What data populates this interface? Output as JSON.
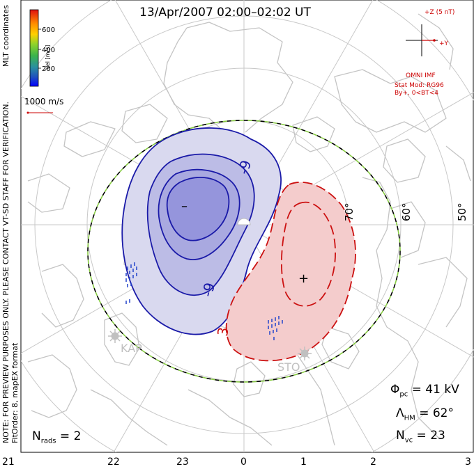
{
  "title": "13/Apr/2007 02:00–02:02 UT",
  "coord_label": "MLT coordinates",
  "color_bar": {
    "label": "Vel [m/s]",
    "ticks": [
      "600",
      "400",
      "200"
    ],
    "colors": [
      "#0000ff",
      "#1f6fb0",
      "#2aa198",
      "#3cb44b",
      "#7ed321",
      "#d4e157",
      "#ffd000",
      "#ff8c00",
      "#ff3300",
      "#cc0000"
    ]
  },
  "scale_vector": {
    "label": "1000 m/s"
  },
  "imf_panel": {
    "z_label": "+Z (5 nT)",
    "y_label": "+Y",
    "source": "OMNI IMF",
    "stat_model": "Stat Mod: RG96",
    "condition": "By+, 0<BT<4"
  },
  "notes": {
    "preview": "NOTE: FOR PREVIEW PURPOSES ONLY. PLEASE CONTACT VT-SD STAFF FOR VERIFICATION.",
    "fit": "FitOrder: 8, mapEX format"
  },
  "latitude_labels": [
    "70°",
    "60°",
    "50°"
  ],
  "mlt_ticks": [
    "21",
    "22",
    "23",
    "0",
    "1",
    "2",
    "3"
  ],
  "contour_labels": [
    "-9",
    "-9",
    "3"
  ],
  "extrema": {
    "min_marker": "–",
    "max_marker": "+"
  },
  "stations": [
    "KAP",
    "STO"
  ],
  "stats": {
    "potential": "= 41 kV",
    "hm_boundary": "= 62°",
    "n_vc": "= 23",
    "n_rads": "= 2"
  },
  "colors": {
    "negative_fill": "#c8c8ea",
    "positive_fill": "#f4cccc",
    "negative_line": "#1a1aa8",
    "positive_line": "#cc1111",
    "grid": "#c8c8c8",
    "coast": "#c4c4c4",
    "hm_dash_green": "#88cc44"
  }
}
